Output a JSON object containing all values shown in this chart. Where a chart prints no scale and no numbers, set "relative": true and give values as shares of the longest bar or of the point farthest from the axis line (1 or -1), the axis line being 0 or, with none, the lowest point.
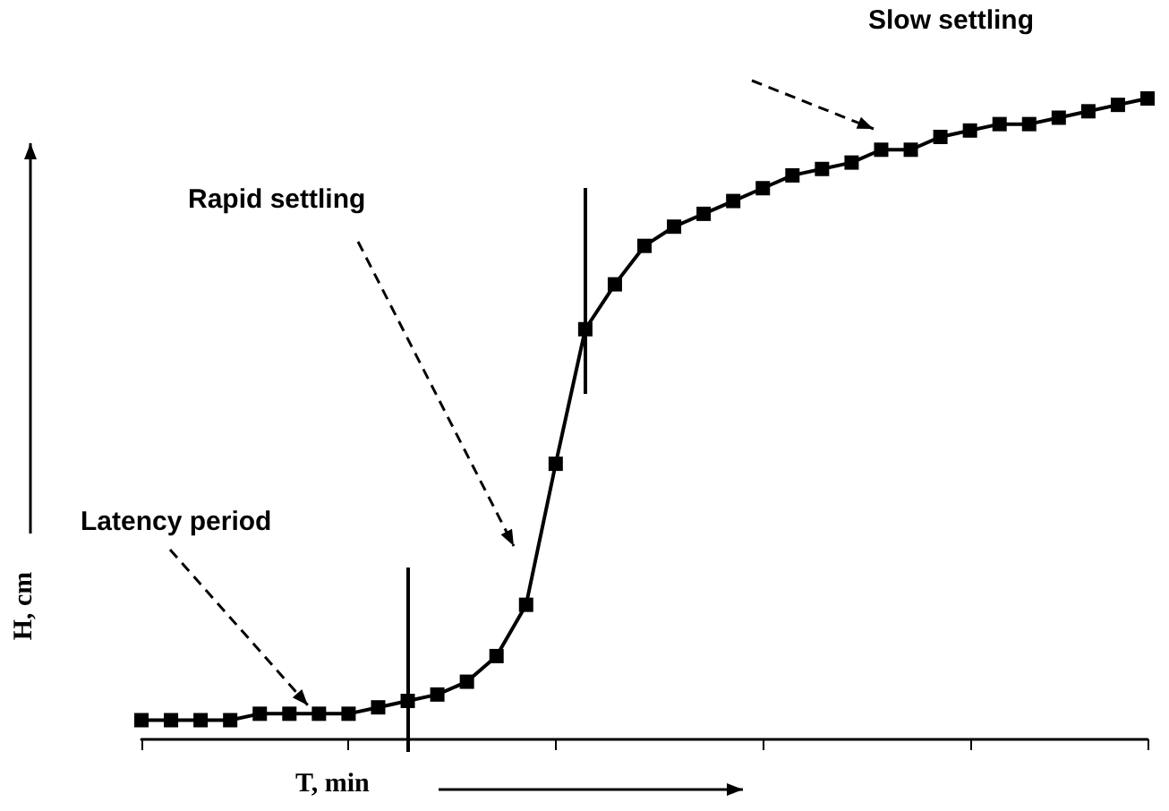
{
  "chart_data": {
    "type": "line",
    "relative": true,
    "xlabel": "T, min",
    "ylabel": "H, cm",
    "categories": [
      null,
      null,
      null,
      null,
      null,
      null,
      null,
      null,
      null,
      null,
      null,
      null,
      null,
      null,
      null,
      null,
      null,
      null,
      null,
      null,
      null,
      null,
      null,
      null,
      null,
      null,
      null,
      null,
      null,
      null,
      null,
      null,
      null,
      null,
      null
    ],
    "series": [
      {
        "color": "#000000",
        "values": [
          0.03,
          0.03,
          0.03,
          0.03,
          0.04,
          0.04,
          0.04,
          0.04,
          0.05,
          0.06,
          0.07,
          0.09,
          0.13,
          0.21,
          0.43,
          0.64,
          0.71,
          0.77,
          0.8,
          0.82,
          0.84,
          0.86,
          0.88,
          0.89,
          0.9,
          0.92,
          0.92,
          0.94,
          0.95,
          0.96,
          0.96,
          0.97,
          0.98,
          0.99,
          1.0
        ]
      }
    ],
    "marker": "square",
    "line_style": "solid",
    "grid": false,
    "annotations": [
      "Slow settling",
      "Rapid settling",
      "Latency period"
    ]
  }
}
